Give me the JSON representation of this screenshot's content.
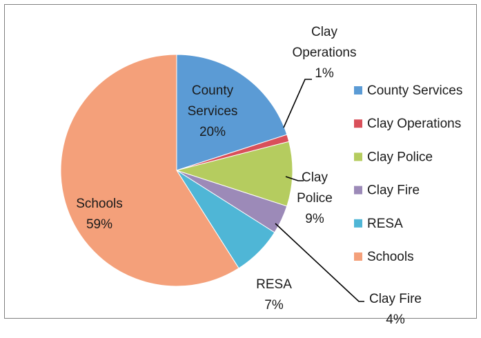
{
  "chart_data": {
    "type": "pie",
    "title": "",
    "start_angle_deg": 0,
    "direction": "clockwise",
    "legend_position": "right",
    "slices": [
      {
        "name": "County Services",
        "value": 20,
        "label_lines": [
          "County",
          "Services",
          "20%"
        ],
        "color": "#5b9bd5"
      },
      {
        "name": "Clay Operations",
        "value": 1,
        "label_lines": [
          "Clay",
          "Operations",
          "1%"
        ],
        "color": "#d9505a"
      },
      {
        "name": "Clay Police",
        "value": 9,
        "label_lines": [
          "Clay",
          "Police",
          "9%"
        ],
        "color": "#b5cc5f"
      },
      {
        "name": "Clay Fire",
        "value": 4,
        "label_lines": [
          "Clay Fire",
          "4%"
        ],
        "color": "#9c8ab8"
      },
      {
        "name": "RESA",
        "value": 7,
        "label_lines": [
          "RESA",
          "7%"
        ],
        "color": "#4fb6d6"
      },
      {
        "name": "Schools",
        "value": 59,
        "label_lines": [
          "Schools",
          "59%"
        ],
        "color": "#f4a07a"
      }
    ]
  }
}
